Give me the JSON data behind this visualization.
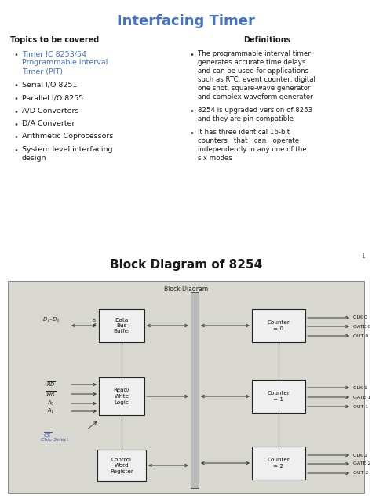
{
  "title": "Interfacing Timer",
  "title_color": "#4472C4",
  "title_fontsize": 13,
  "left_heading": "Topics to be covered",
  "left_items": [
    "Timer IC 8253/54\nProgrammable Interval\nTimer (PIT)",
    "Serial I/O 8251",
    "Parallel I/O 8255",
    "A/D Converters",
    "D/A Converter",
    "Arithmetic Coprocessors",
    "System level interfacing\ndesign"
  ],
  "left_item_colors": [
    "#4472C4",
    "#1A1A1A",
    "#1A1A1A",
    "#1A1A1A",
    "#1A1A1A",
    "#1A1A1A",
    "#1A1A1A"
  ],
  "right_heading": "Definitions",
  "right_items": [
    "The programmable interval timer\ngenerates accurate time delays\nand can be used for applications\nsuch as RTC, event counter, digital\none shot, square-wave generator\nand complex waveform generator",
    "8254 is upgraded version of 8253\nand they are pin compatible",
    "It has three identical 16-bit\ncounters   that   can   operate\nindependently in any one of the\nsix modes"
  ],
  "page_number": "1",
  "section2_title": "Block Diagram of 8254",
  "bg_color": "#FFFFFF",
  "diagram_bg": "#D8D8D0",
  "diagram_paper": "#E8E5DC"
}
